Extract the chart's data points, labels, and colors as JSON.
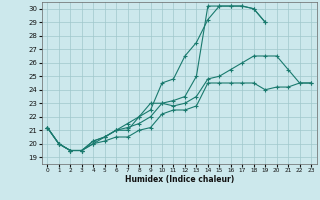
{
  "xlabel": "Humidex (Indice chaleur)",
  "xlim": [
    -0.5,
    23.5
  ],
  "ylim": [
    18.5,
    30.5
  ],
  "yticks": [
    19,
    20,
    21,
    22,
    23,
    24,
    25,
    26,
    27,
    28,
    29,
    30
  ],
  "xticks": [
    0,
    1,
    2,
    3,
    4,
    5,
    6,
    7,
    8,
    9,
    10,
    11,
    12,
    13,
    14,
    15,
    16,
    17,
    18,
    19,
    20,
    21,
    22,
    23
  ],
  "bg_color": "#cce8ec",
  "grid_color": "#a0c8cc",
  "line_color": "#1a7a6e",
  "series": [
    [
      21.2,
      20.0,
      19.5,
      19.5,
      20.0,
      20.2,
      20.5,
      20.5,
      21.0,
      21.2,
      22.2,
      22.5,
      22.5,
      22.8,
      24.5,
      24.5,
      24.5,
      24.5,
      24.5,
      24.0,
      24.2,
      24.2,
      24.5,
      24.5
    ],
    [
      21.2,
      20.0,
      19.5,
      19.5,
      20.0,
      20.5,
      21.0,
      21.2,
      21.5,
      22.0,
      23.0,
      22.8,
      23.0,
      23.5,
      24.8,
      25.0,
      25.5,
      26.0,
      26.5,
      26.5,
      26.5,
      25.5,
      24.5,
      24.5
    ],
    [
      21.2,
      20.0,
      19.5,
      19.5,
      20.2,
      20.5,
      21.0,
      21.0,
      22.0,
      22.5,
      24.5,
      24.8,
      26.5,
      27.5,
      29.2,
      30.2,
      30.2,
      30.2,
      30.0,
      29.0,
      null,
      null,
      24.5,
      null
    ],
    [
      21.2,
      20.0,
      19.5,
      19.5,
      20.2,
      20.5,
      21.0,
      21.5,
      22.0,
      23.0,
      23.0,
      23.2,
      23.5,
      25.0,
      30.2,
      30.2,
      30.2,
      30.2,
      30.0,
      29.0,
      null,
      null,
      null,
      null
    ]
  ]
}
